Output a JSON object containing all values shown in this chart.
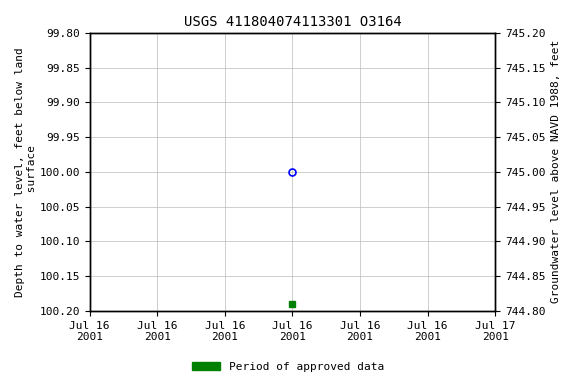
{
  "title": "USGS 411804074113301 O3164",
  "ylabel_left": "Depth to water level, feet below land\n surface",
  "ylabel_right": "Groundwater level above NAVD 1988, feet",
  "ylim_left_top": 99.8,
  "ylim_left_bottom": 100.2,
  "ylim_right_top": 745.2,
  "ylim_right_bottom": 744.8,
  "yticks_left": [
    99.8,
    99.85,
    99.9,
    99.95,
    100.0,
    100.05,
    100.1,
    100.15,
    100.2
  ],
  "yticks_right": [
    745.2,
    745.15,
    745.1,
    745.05,
    745.0,
    744.95,
    744.9,
    744.85,
    744.8
  ],
  "xdata_circle_hour": 12,
  "ydata_circle": 100.0,
  "xdata_square_hour": 12,
  "ydata_square": 100.19,
  "circle_color": "blue",
  "square_color": "green",
  "background_color": "white",
  "grid_color": "#bbbbbb",
  "font_family": "monospace",
  "title_fontsize": 10,
  "axis_label_fontsize": 8,
  "tick_fontsize": 8,
  "legend_label": "Period of approved data",
  "xtick_hours": [
    0,
    4,
    8,
    12,
    16,
    20,
    24
  ],
  "xtick_labels": [
    "Jul 16\n2001",
    "Jul 16\n2001",
    "Jul 16\n2001",
    "Jul 16\n2001",
    "Jul 16\n2001",
    "Jul 16\n2001",
    "Jul 17\n2001"
  ]
}
